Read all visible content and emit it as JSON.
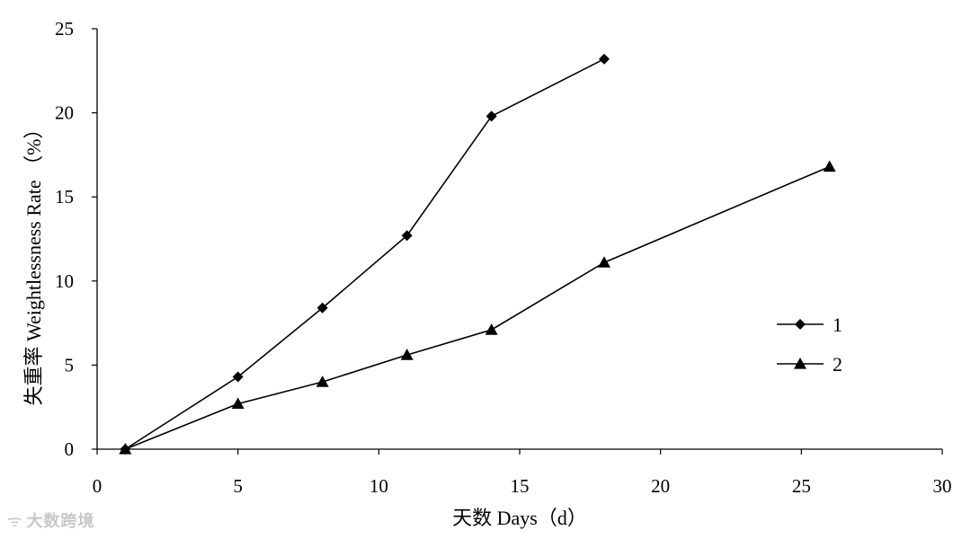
{
  "chart_data": {
    "type": "line",
    "xlabel": "天数 Days（d）",
    "ylabel": "失重率 Weightlessness Rate （%）",
    "xlim": [
      0,
      30
    ],
    "ylim": [
      0,
      25
    ],
    "xticks": [
      0,
      5,
      10,
      15,
      20,
      25,
      30
    ],
    "yticks": [
      0,
      5,
      10,
      15,
      20,
      25
    ],
    "grid": false,
    "legend_position": "right",
    "series": [
      {
        "name": "1",
        "marker": "diamond",
        "x": [
          1,
          5,
          8,
          11,
          14,
          18
        ],
        "y": [
          0,
          4.3,
          8.4,
          12.7,
          19.8,
          23.2
        ]
      },
      {
        "name": "2",
        "marker": "triangle",
        "x": [
          1,
          5,
          8,
          11,
          14,
          18,
          26
        ],
        "y": [
          0,
          2.7,
          4.0,
          5.6,
          7.1,
          11.1,
          16.8
        ]
      }
    ]
  },
  "watermark": {
    "icon": "wechat-channel-icon",
    "text": "大数跨境"
  }
}
